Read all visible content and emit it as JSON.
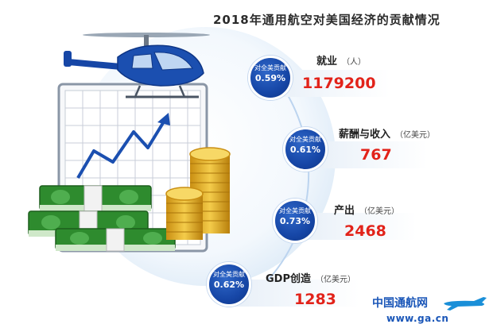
{
  "title": "2018年通用航空对美国经济的贡献情况",
  "share_label": "对全美贡献",
  "metrics": [
    {
      "label": "就业",
      "unit": "（人）",
      "value": "1179200",
      "share": "0.59%"
    },
    {
      "label": "薪酬与收入",
      "unit": "（亿美元）",
      "value": "767",
      "share": "0.61%"
    },
    {
      "label": "产出",
      "unit": "（亿美元）",
      "value": "2468",
      "share": "0.73%"
    },
    {
      "label": "GDP创造",
      "unit": "（亿美元）",
      "value": "1283",
      "share": "0.62%"
    }
  ],
  "watermark": {
    "name": "中国通航网",
    "url": "www.ga.cn"
  },
  "colors": {
    "accent_blue": "#1646a6",
    "value_red": "#e2231a",
    "money_green": "#2e8b2e",
    "coin_gold": "#e9b32a"
  },
  "icons": [
    "helicopter-icon",
    "chart-board-icon",
    "money-stack-icon",
    "coin-stack-icon",
    "airplane-icon"
  ]
}
